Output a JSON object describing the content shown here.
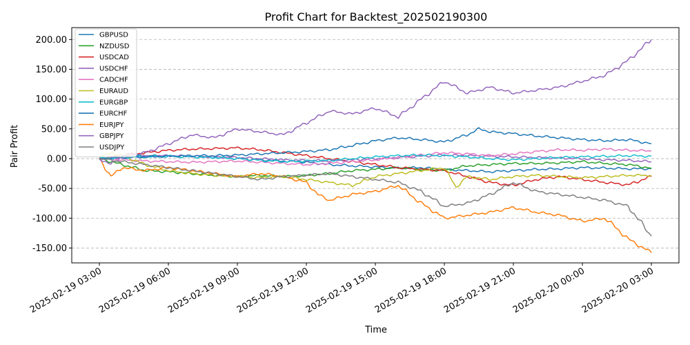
{
  "chart_data": {
    "type": "line",
    "title": "Profit Chart for Backtest_202502190300",
    "xlabel": "Time",
    "ylabel": "Pair Profit",
    "xlim_hours": [
      -1.2,
      25.2
    ],
    "ylim": [
      -175,
      220
    ],
    "x_ticks": [
      {
        "h": 0,
        "label": "2025-02-19 03:00"
      },
      {
        "h": 3,
        "label": "2025-02-19 06:00"
      },
      {
        "h": 6,
        "label": "2025-02-19 09:00"
      },
      {
        "h": 9,
        "label": "2025-02-19 12:00"
      },
      {
        "h": 12,
        "label": "2025-02-19 15:00"
      },
      {
        "h": 15,
        "label": "2025-02-19 18:00"
      },
      {
        "h": 18,
        "label": "2025-02-19 21:00"
      },
      {
        "h": 21,
        "label": "2025-02-20 00:00"
      },
      {
        "h": 24,
        "label": "2025-02-20 03:00"
      }
    ],
    "y_ticks": [
      {
        "v": 200,
        "label": "200.00"
      },
      {
        "v": 150,
        "label": "150.00"
      },
      {
        "v": 100,
        "label": "100.00"
      },
      {
        "v": 50,
        "label": "50.00"
      },
      {
        "v": 0,
        "label": "0.00"
      },
      {
        "v": -50,
        "label": "-50.00"
      },
      {
        "v": -100,
        "label": "-100.00"
      },
      {
        "v": -150,
        "label": "-150.00"
      }
    ],
    "grid": "y-dashed",
    "legend_position": "top-left",
    "series": [
      {
        "name": "GBPUSD",
        "color": "#1f77b4",
        "x": [
          0,
          1,
          2,
          3,
          4,
          5,
          6,
          7,
          8,
          9,
          10,
          11,
          12,
          13,
          14,
          15,
          16,
          17,
          18,
          19,
          20,
          21,
          22,
          23,
          24
        ],
        "y": [
          0,
          3,
          5,
          4,
          3,
          2,
          0,
          -2,
          -4,
          -6,
          -10,
          -12,
          -14,
          -16,
          -15,
          -18,
          -20,
          -22,
          -20,
          -18,
          -17,
          -15,
          -16,
          -17,
          -17
        ]
      },
      {
        "name": "NZDUSD",
        "color": "#2ca02c",
        "x": [
          0,
          0.5,
          1,
          2,
          3,
          4,
          5,
          6,
          7,
          8,
          9,
          10,
          11,
          12,
          13,
          14,
          15,
          16,
          17,
          18,
          19,
          20,
          21,
          22,
          23,
          24
        ],
        "y": [
          0,
          -5,
          -10,
          -20,
          -22,
          -25,
          -28,
          -30,
          -28,
          -30,
          -28,
          -25,
          -20,
          -18,
          -15,
          -18,
          -20,
          -12,
          -10,
          -8,
          -8,
          -7,
          -5,
          -8,
          -10,
          -16
        ]
      },
      {
        "name": "USDCAD",
        "color": "#d62728",
        "x": [
          0,
          1,
          2,
          3,
          4,
          5,
          6,
          7,
          8,
          9,
          10,
          11,
          12,
          13,
          14,
          15,
          16,
          17,
          18,
          19,
          20,
          21,
          22,
          23,
          24
        ],
        "y": [
          0,
          5,
          10,
          14,
          16,
          17,
          18,
          15,
          10,
          5,
          0,
          -5,
          -10,
          -15,
          -18,
          -20,
          -30,
          -40,
          -45,
          -35,
          -30,
          -35,
          -40,
          -44,
          -30
        ]
      },
      {
        "name": "USDCHF",
        "color": "#9467bd",
        "x": [
          0,
          1,
          2,
          3,
          4,
          5,
          6,
          7,
          8,
          9,
          10,
          11,
          12,
          13,
          14,
          15,
          16,
          17,
          18,
          19,
          20,
          21,
          22,
          23,
          24
        ],
        "y": [
          0,
          2,
          4,
          5,
          4,
          3,
          2,
          0,
          -2,
          -3,
          -4,
          -2,
          0,
          2,
          4,
          6,
          5,
          4,
          3,
          2,
          1,
          0,
          -2,
          -3,
          -5
        ]
      },
      {
        "name": "CADCHF",
        "color": "#e377c2",
        "x": [
          0,
          1,
          2,
          3,
          4,
          5,
          6,
          7,
          8,
          9,
          10,
          11,
          12,
          13,
          14,
          15,
          16,
          17,
          18,
          19,
          20,
          21,
          22,
          23,
          24
        ],
        "y": [
          0,
          -2,
          -4,
          -5,
          -6,
          -5,
          -4,
          -6,
          -8,
          -10,
          -8,
          -5,
          -2,
          2,
          6,
          10,
          8,
          5,
          8,
          12,
          15,
          14,
          16,
          14,
          13
        ]
      },
      {
        "name": "EURAUD",
        "color": "#bcbd22",
        "x": [
          0,
          0.5,
          1,
          2,
          3,
          4,
          5,
          6,
          7,
          8,
          9,
          10,
          11,
          12,
          13,
          14,
          15,
          15.5,
          16,
          17,
          18,
          19,
          20,
          21,
          22,
          23,
          24
        ],
        "y": [
          0,
          10,
          5,
          -10,
          -20,
          -25,
          -28,
          -30,
          -32,
          -30,
          -35,
          -40,
          -45,
          -30,
          -25,
          -20,
          -15,
          -48,
          -30,
          -35,
          -30,
          -28,
          -30,
          -32,
          -30,
          -28,
          -28
        ]
      },
      {
        "name": "EURGBP",
        "color": "#17becf",
        "x": [
          0,
          1,
          2,
          3,
          4,
          5,
          6,
          7,
          8,
          9,
          10,
          11,
          12,
          13,
          14,
          15,
          16,
          17,
          18,
          19,
          20,
          21,
          22,
          23,
          24
        ],
        "y": [
          0,
          2,
          3,
          4,
          3,
          2,
          0,
          -3,
          -5,
          -4,
          -3,
          0,
          3,
          5,
          6,
          5,
          3,
          0,
          -2,
          0,
          2,
          3,
          4,
          5,
          4
        ]
      },
      {
        "name": "EURCHF",
        "color": "#1f77b4",
        "x": [
          0,
          1,
          2,
          3,
          4,
          5,
          6,
          7,
          8,
          9,
          10,
          11,
          12,
          13,
          14,
          15,
          16,
          16.5,
          17,
          18,
          19,
          20,
          21,
          22,
          23,
          24
        ],
        "y": [
          0,
          2,
          3,
          4,
          5,
          5,
          6,
          8,
          10,
          12,
          15,
          22,
          30,
          35,
          32,
          28,
          40,
          50,
          45,
          42,
          38,
          35,
          32,
          30,
          32,
          25
        ]
      },
      {
        "name": "EURJPY",
        "color": "#ff7f0e",
        "x": [
          0,
          0.5,
          1,
          2,
          3,
          4,
          5,
          6,
          7,
          8,
          9,
          9.5,
          10,
          11,
          12,
          13,
          14,
          15,
          16,
          17,
          18,
          19,
          20,
          21,
          22,
          23,
          24
        ],
        "y": [
          0,
          -30,
          -15,
          -20,
          -15,
          -20,
          -25,
          -30,
          -25,
          -30,
          -40,
          -60,
          -70,
          -60,
          -55,
          -45,
          -75,
          -100,
          -95,
          -90,
          -82,
          -90,
          -95,
          -105,
          -100,
          -135,
          -158
        ]
      },
      {
        "name": "GBPJPY",
        "color": "#9467bd",
        "x": [
          0,
          0.5,
          1,
          2,
          3,
          4,
          5,
          6,
          7,
          8,
          9,
          10,
          11,
          12,
          13,
          14,
          15,
          16,
          17,
          18,
          19,
          20,
          21,
          22,
          23,
          24
        ],
        "y": [
          0,
          -10,
          5,
          10,
          25,
          40,
          35,
          50,
          45,
          40,
          60,
          80,
          75,
          85,
          70,
          100,
          130,
          110,
          120,
          110,
          115,
          120,
          130,
          140,
          165,
          200
        ]
      },
      {
        "name": "USDJPY",
        "color": "#7f7f7f",
        "x": [
          0,
          1,
          2,
          3,
          4,
          5,
          6,
          7,
          8,
          9,
          10,
          11,
          12,
          13,
          14,
          15,
          16,
          17,
          18,
          19,
          20,
          21,
          22,
          23,
          24
        ],
        "y": [
          0,
          -5,
          -10,
          -15,
          -20,
          -25,
          -30,
          -35,
          -30,
          -28,
          -25,
          -30,
          -35,
          -40,
          -55,
          -80,
          -75,
          -60,
          -40,
          -55,
          -60,
          -65,
          -70,
          -80,
          -130
        ]
      }
    ]
  }
}
